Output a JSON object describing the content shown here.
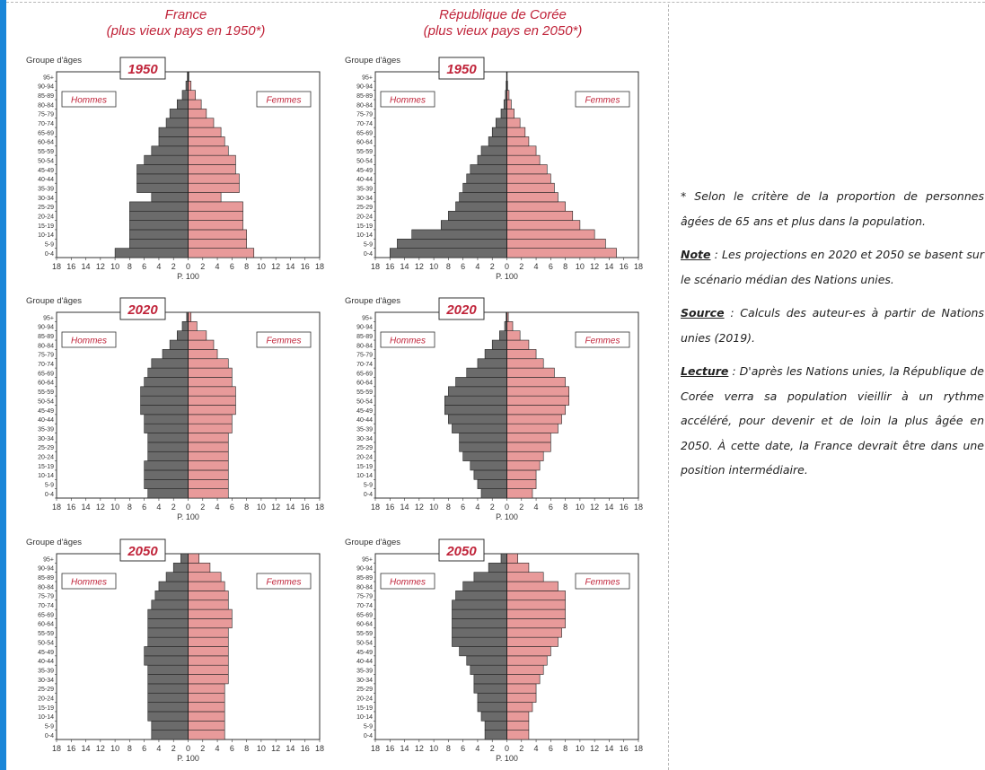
{
  "columns": [
    {
      "title": "France",
      "subtitle": "(plus vieux pays en 1950*)"
    },
    {
      "title": "République de Corée",
      "subtitle": "(plus vieux pays en 2050*)"
    }
  ],
  "colors": {
    "men": "#6b6b6b",
    "women": "#e89a9a",
    "year_label": "#c0243a",
    "sex_label": "#c0243a"
  },
  "chart_data": [
    {
      "type": "bar",
      "country": "France",
      "year": "1950",
      "ylabel": "Groupe d'âges",
      "xlabel": "P. 100",
      "men_label": "Hommes",
      "women_label": "Femmes",
      "x_ticks": [
        "18",
        "16",
        "14",
        "12",
        "10",
        "8",
        "6",
        "4",
        "2",
        "0",
        "2",
        "4",
        "6",
        "8",
        "10",
        "12",
        "14",
        "16",
        "18"
      ],
      "xlim": [
        -18,
        18
      ],
      "categories": [
        "0-4",
        "5-9",
        "10-14",
        "15-19",
        "20-24",
        "25-29",
        "30-34",
        "35-39",
        "40-44",
        "45-49",
        "50-54",
        "55-59",
        "60-64",
        "65-69",
        "70-74",
        "75-79",
        "80-84",
        "85-89",
        "90-94",
        "95+"
      ],
      "men": [
        10,
        8,
        8,
        8,
        8,
        8,
        5,
        7,
        7,
        7,
        6,
        5,
        4,
        4,
        3,
        2.5,
        1.5,
        0.8,
        0.3,
        0.1
      ],
      "women": [
        9,
        8,
        8,
        7.5,
        7.5,
        7.5,
        4.5,
        7,
        7,
        6.5,
        6.5,
        5.5,
        5,
        4.5,
        3.5,
        2.5,
        1.8,
        1.0,
        0.4,
        0.1
      ]
    },
    {
      "type": "bar",
      "country": "République de Corée",
      "year": "1950",
      "ylabel": "Groupe d'âges",
      "xlabel": "P. 100",
      "men_label": "Hommes",
      "women_label": "Femmes",
      "x_ticks": [
        "18",
        "16",
        "14",
        "12",
        "10",
        "8",
        "6",
        "4",
        "2",
        "0",
        "2",
        "4",
        "6",
        "8",
        "10",
        "12",
        "14",
        "16",
        "18"
      ],
      "xlim": [
        -18,
        18
      ],
      "categories": [
        "0-4",
        "5-9",
        "10-14",
        "15-19",
        "20-24",
        "25-29",
        "30-34",
        "35-39",
        "40-44",
        "45-49",
        "50-54",
        "55-59",
        "60-64",
        "65-69",
        "70-74",
        "75-79",
        "80-84",
        "85-89",
        "90-94",
        "95+"
      ],
      "men": [
        16,
        15,
        13,
        9,
        8,
        7,
        6.5,
        6,
        5.5,
        5,
        4,
        3.5,
        2.5,
        2,
        1.5,
        0.8,
        0.4,
        0.2,
        0.1,
        0.05
      ],
      "women": [
        15,
        13.5,
        12,
        10,
        9,
        8,
        7,
        6.5,
        6,
        5.5,
        4.5,
        4,
        3,
        2.5,
        1.8,
        1.0,
        0.6,
        0.3,
        0.1,
        0.05
      ]
    },
    {
      "type": "bar",
      "country": "France",
      "year": "2020",
      "ylabel": "Groupe d'âges",
      "xlabel": "P. 100",
      "men_label": "Hommes",
      "women_label": "Femmes",
      "x_ticks": [
        "18",
        "16",
        "14",
        "12",
        "10",
        "8",
        "6",
        "4",
        "2",
        "0",
        "2",
        "4",
        "6",
        "8",
        "10",
        "12",
        "14",
        "16",
        "18"
      ],
      "xlim": [
        -18,
        18
      ],
      "categories": [
        "0-4",
        "5-9",
        "10-14",
        "15-19",
        "20-24",
        "25-29",
        "30-34",
        "35-39",
        "40-44",
        "45-49",
        "50-54",
        "55-59",
        "60-64",
        "65-69",
        "70-74",
        "75-79",
        "80-84",
        "85-89",
        "90-94",
        "95+"
      ],
      "men": [
        5.5,
        6,
        6,
        6,
        5.5,
        5.5,
        5.5,
        6,
        6,
        6.5,
        6.5,
        6.5,
        6,
        5.5,
        5,
        3.5,
        2.5,
        1.5,
        0.8,
        0.2
      ],
      "women": [
        5.5,
        5.5,
        5.5,
        5.5,
        5.5,
        5.5,
        5.5,
        6,
        6,
        6.5,
        6.5,
        6.5,
        6,
        6,
        5.5,
        4,
        3.5,
        2.5,
        1.2,
        0.4
      ]
    },
    {
      "type": "bar",
      "country": "République de Corée",
      "year": "2020",
      "ylabel": "Groupe d'âges",
      "xlabel": "P. 100",
      "men_label": "Hommes",
      "women_label": "Femmes",
      "x_ticks": [
        "18",
        "16",
        "14",
        "12",
        "10",
        "8",
        "6",
        "4",
        "2",
        "0",
        "2",
        "4",
        "6",
        "8",
        "10",
        "12",
        "14",
        "16",
        "18"
      ],
      "xlim": [
        -18,
        18
      ],
      "categories": [
        "0-4",
        "5-9",
        "10-14",
        "15-19",
        "20-24",
        "25-29",
        "30-34",
        "35-39",
        "40-44",
        "45-49",
        "50-54",
        "55-59",
        "60-64",
        "65-69",
        "70-74",
        "75-79",
        "80-84",
        "85-89",
        "90-94",
        "95+"
      ],
      "men": [
        3.5,
        4,
        4.5,
        5,
        6,
        6.5,
        6.5,
        7.5,
        8,
        8.5,
        8.5,
        8,
        7,
        5.5,
        4,
        3,
        2,
        1,
        0.3,
        0.1
      ],
      "women": [
        3.5,
        4,
        4,
        4.5,
        5,
        6,
        6,
        7,
        7.5,
        8,
        8.5,
        8.5,
        8,
        6.5,
        5,
        4,
        3,
        1.8,
        0.8,
        0.2
      ]
    },
    {
      "type": "bar",
      "country": "France",
      "year": "2050",
      "ylabel": "Groupe d'âges",
      "xlabel": "P. 100",
      "men_label": "Hommes",
      "women_label": "Femmes",
      "x_ticks": [
        "18",
        "16",
        "14",
        "12",
        "10",
        "8",
        "6",
        "4",
        "2",
        "0",
        "2",
        "4",
        "6",
        "8",
        "10",
        "12",
        "14",
        "16",
        "18"
      ],
      "xlim": [
        -18,
        18
      ],
      "categories": [
        "0-4",
        "5-9",
        "10-14",
        "15-19",
        "20-24",
        "25-29",
        "30-34",
        "35-39",
        "40-44",
        "45-49",
        "50-54",
        "55-59",
        "60-64",
        "65-69",
        "70-74",
        "75-79",
        "80-84",
        "85-89",
        "90-94",
        "95+"
      ],
      "men": [
        5,
        5,
        5.5,
        5.5,
        5.5,
        5.5,
        5.5,
        5.5,
        6,
        6,
        5.5,
        5.5,
        5.5,
        5.5,
        5,
        4.5,
        4,
        3,
        2,
        1
      ],
      "women": [
        5,
        5,
        5,
        5,
        5,
        5,
        5.5,
        5.5,
        5.5,
        5.5,
        5.5,
        5.5,
        6,
        6,
        5.5,
        5.5,
        5,
        4.5,
        3,
        1.5
      ]
    },
    {
      "type": "bar",
      "country": "République de Corée",
      "year": "2050",
      "ylabel": "Groupe d'âges",
      "xlabel": "P. 100",
      "men_label": "Hommes",
      "women_label": "Femmes",
      "x_ticks": [
        "18",
        "16",
        "14",
        "12",
        "10",
        "8",
        "6",
        "4",
        "2",
        "0",
        "2",
        "4",
        "6",
        "8",
        "10",
        "12",
        "14",
        "16",
        "18"
      ],
      "xlim": [
        -18,
        18
      ],
      "categories": [
        "0-4",
        "5-9",
        "10-14",
        "15-19",
        "20-24",
        "25-29",
        "30-34",
        "35-39",
        "40-44",
        "45-49",
        "50-54",
        "55-59",
        "60-64",
        "65-69",
        "70-74",
        "75-79",
        "80-84",
        "85-89",
        "90-94",
        "95+"
      ],
      "men": [
        3,
        3,
        3.5,
        4,
        4,
        4.5,
        4.5,
        5,
        5.5,
        6.5,
        7.5,
        7.5,
        7.5,
        7.5,
        7.5,
        7,
        6,
        4.5,
        2.5,
        0.8
      ],
      "women": [
        3,
        3,
        3,
        3.5,
        4,
        4,
        4.5,
        5,
        5.5,
        6,
        7,
        7.5,
        8,
        8,
        8,
        8,
        7,
        5,
        3,
        1.5
      ]
    }
  ],
  "notes": {
    "criterion": "* Selon le critère de la proportion de personnes âgées de 65 ans et plus dans la population.",
    "note_label": "Note",
    "note_text": " : Les projections en 2020 et 2050 se basent sur le scénario médian des Nations unies.",
    "source_label": "Source",
    "source_text": " : Calculs des auteur-es à partir de Nations unies (2019).",
    "lecture_label": "Lecture",
    "lecture_text": " : D'après les Nations unies, la République de Corée verra sa population vieillir à un rythme accéléré, pour devenir et de loin la plus âgée en 2050. À cette date, la France devrait être dans une position intermédiaire."
  }
}
